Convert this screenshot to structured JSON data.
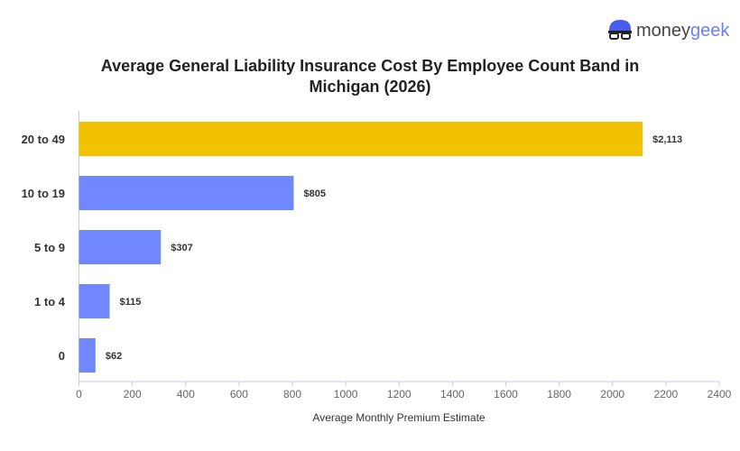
{
  "logo": {
    "text_a": "money",
    "text_b": "geek"
  },
  "chart_data": {
    "type": "bar",
    "orientation": "horizontal",
    "title": "Average General Liability Insurance Cost By Employee Count Band in Michigan (2026)",
    "title_lines": [
      "Average General Liability Insurance Cost By Employee Count Band in",
      "Michigan (2026)"
    ],
    "xlabel": "Average Monthly Premium Estimate",
    "ylabel": "",
    "categories": [
      "20 to 49",
      "10 to 19",
      "5 to 9",
      "1 to 4",
      "0"
    ],
    "values": [
      2113,
      805,
      307,
      115,
      62
    ],
    "data_labels": [
      "$2,113",
      "$805",
      "$307",
      "$115",
      "$62"
    ],
    "colors": [
      "#f2c200",
      "#7187ff",
      "#7187ff",
      "#7187ff",
      "#7187ff"
    ],
    "xlim": [
      0,
      2400
    ],
    "xticks": [
      0,
      200,
      400,
      600,
      800,
      1000,
      1200,
      1400,
      1600,
      1800,
      2000,
      2200,
      2400
    ],
    "grid": false,
    "legend": "none"
  }
}
